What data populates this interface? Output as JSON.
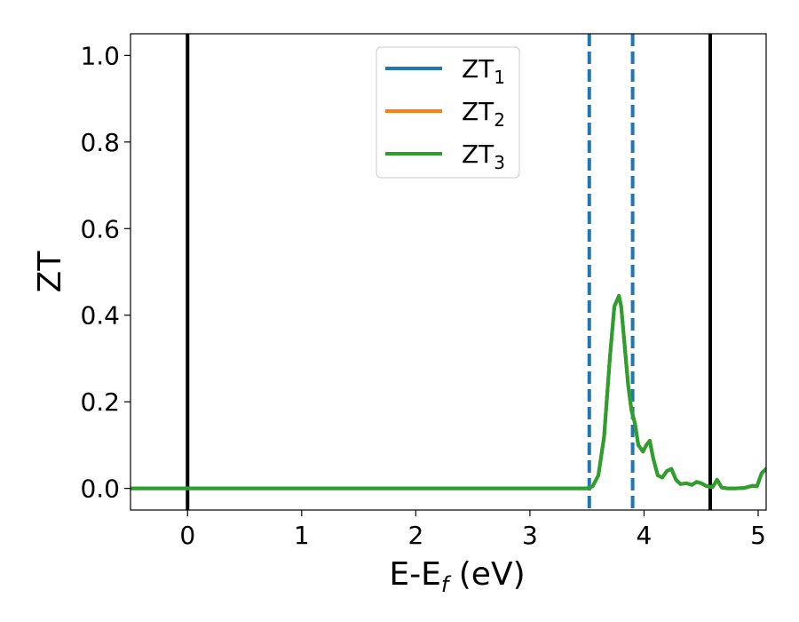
{
  "chart_data": {
    "type": "line",
    "xlabel": "E-E",
    "xlabel_sub": "f",
    "xlabel_unit": " (eV)",
    "ylabel": "ZT",
    "xlim": [
      -0.5,
      5.07
    ],
    "ylim": [
      -0.05,
      1.05
    ],
    "xticks": [
      0,
      1,
      2,
      3,
      4,
      5
    ],
    "xtick_labels": [
      "0",
      "1",
      "2",
      "3",
      "4",
      "5"
    ],
    "yticks": [
      0.0,
      0.2,
      0.4,
      0.6,
      0.8,
      1.0
    ],
    "ytick_labels": [
      "0.0",
      "0.2",
      "0.4",
      "0.6",
      "0.8",
      "1.0"
    ],
    "grid": false,
    "legend_position": "top-center",
    "vlines": [
      {
        "x": 0.0,
        "style": "solid",
        "color": "#000000"
      },
      {
        "x": 4.58,
        "style": "solid",
        "color": "#000000"
      },
      {
        "x": 3.52,
        "style": "dashed",
        "color": "#1f77b4"
      },
      {
        "x": 3.9,
        "style": "dashed",
        "color": "#1f77b4"
      }
    ],
    "series": [
      {
        "name": "ZT",
        "name_sub": "1",
        "color": "#1f77b4",
        "x": [
          -0.5,
          3.5,
          3.55,
          3.6,
          3.65,
          3.7,
          3.74,
          3.78,
          3.8,
          3.83,
          3.86,
          3.89,
          3.92,
          3.95,
          3.99,
          4.02,
          4.05,
          4.08,
          4.12,
          4.16,
          4.2,
          4.24,
          4.28,
          4.32,
          4.37,
          4.42,
          4.46,
          4.5,
          4.55,
          4.6,
          4.64,
          4.68,
          4.73,
          4.8,
          4.88,
          4.95,
          4.99,
          5.03,
          5.07
        ],
        "y": [
          0.0,
          0.0,
          0.005,
          0.03,
          0.12,
          0.3,
          0.42,
          0.445,
          0.42,
          0.33,
          0.24,
          0.18,
          0.15,
          0.1,
          0.085,
          0.1,
          0.11,
          0.07,
          0.03,
          0.025,
          0.04,
          0.045,
          0.02,
          0.01,
          0.012,
          0.008,
          0.015,
          0.012,
          0.005,
          0.003,
          0.02,
          0.002,
          0.0,
          0.0,
          0.001,
          0.006,
          0.005,
          0.035,
          0.045
        ]
      },
      {
        "name": "ZT",
        "name_sub": "2",
        "color": "#ff7f0e",
        "x": [
          -0.5,
          3.5,
          3.55,
          3.6,
          3.65,
          3.7,
          3.74,
          3.78,
          3.8,
          3.83,
          3.86,
          3.89,
          3.92,
          3.95,
          3.99,
          4.02,
          4.05,
          4.08,
          4.12,
          4.16,
          4.2,
          4.24,
          4.28,
          4.32,
          4.37,
          4.42,
          4.46,
          4.5,
          4.55,
          4.6,
          4.64,
          4.68,
          4.73,
          4.8,
          4.88,
          4.95,
          4.99,
          5.03,
          5.07
        ],
        "y": [
          0.0,
          0.0,
          0.005,
          0.03,
          0.12,
          0.3,
          0.42,
          0.445,
          0.42,
          0.33,
          0.24,
          0.18,
          0.15,
          0.1,
          0.085,
          0.1,
          0.11,
          0.07,
          0.03,
          0.025,
          0.04,
          0.045,
          0.02,
          0.01,
          0.012,
          0.008,
          0.015,
          0.012,
          0.005,
          0.003,
          0.02,
          0.002,
          0.0,
          0.0,
          0.001,
          0.006,
          0.005,
          0.035,
          0.045
        ]
      },
      {
        "name": "ZT",
        "name_sub": "3",
        "color": "#2ca02c",
        "x": [
          -0.5,
          3.5,
          3.55,
          3.6,
          3.65,
          3.7,
          3.74,
          3.78,
          3.8,
          3.83,
          3.86,
          3.89,
          3.92,
          3.95,
          3.99,
          4.02,
          4.05,
          4.08,
          4.12,
          4.16,
          4.2,
          4.24,
          4.28,
          4.32,
          4.37,
          4.42,
          4.46,
          4.5,
          4.55,
          4.6,
          4.64,
          4.68,
          4.73,
          4.8,
          4.88,
          4.95,
          4.99,
          5.03,
          5.07
        ],
        "y": [
          0.0,
          0.0,
          0.005,
          0.03,
          0.12,
          0.3,
          0.42,
          0.445,
          0.42,
          0.33,
          0.24,
          0.18,
          0.15,
          0.1,
          0.085,
          0.1,
          0.11,
          0.07,
          0.03,
          0.025,
          0.04,
          0.045,
          0.02,
          0.01,
          0.012,
          0.008,
          0.015,
          0.012,
          0.005,
          0.003,
          0.02,
          0.002,
          0.0,
          0.0,
          0.001,
          0.006,
          0.005,
          0.035,
          0.045
        ]
      }
    ]
  }
}
